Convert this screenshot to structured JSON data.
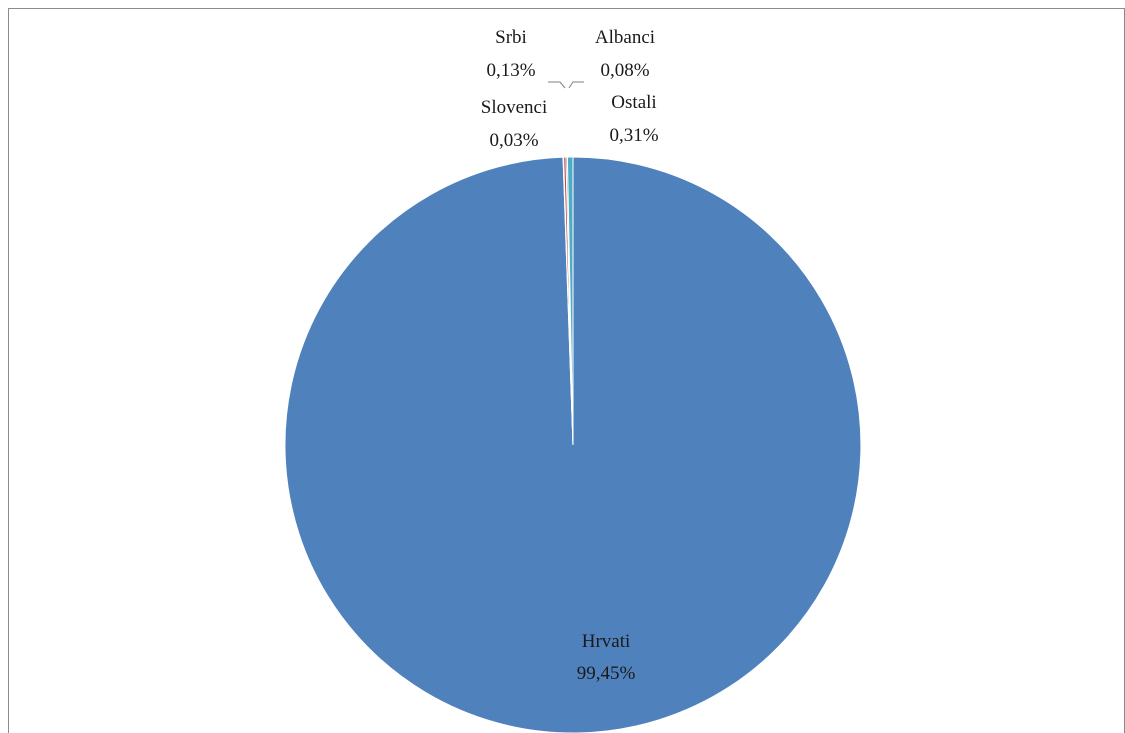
{
  "chart_data": {
    "type": "pie",
    "title": "",
    "start_angle_deg": 0,
    "direction": "clockwise",
    "slices": [
      {
        "name": "Hrvati",
        "value": 99.45,
        "label": "99,45%",
        "color": "#4f81bd"
      },
      {
        "name": "Slovenci",
        "value": 0.03,
        "label": "0,03%",
        "color": "#9bbb59"
      },
      {
        "name": "Srbi",
        "value": 0.13,
        "label": "0,13%",
        "color": "#c0504d"
      },
      {
        "name": "Albanci",
        "value": 0.08,
        "label": "0,08%",
        "color": "#8064a2"
      },
      {
        "name": "Ostali",
        "value": 0.31,
        "label": "0,31%",
        "color": "#4bacc6"
      }
    ]
  }
}
